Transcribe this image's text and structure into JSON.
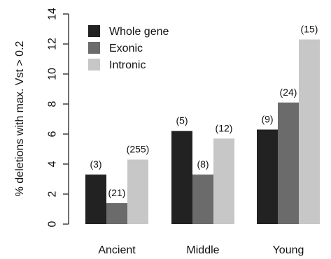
{
  "chart_data": {
    "type": "bar",
    "title": "",
    "xlabel": "",
    "ylabel": "% deletions with max. Vst > 0.2",
    "ylim": [
      0,
      14
    ],
    "yticks": [
      0,
      2,
      4,
      6,
      8,
      10,
      12,
      14
    ],
    "categories": [
      "Ancient",
      "Middle",
      "Young"
    ],
    "series": [
      {
        "name": "Whole gene",
        "color": "#222222",
        "values": [
          3.3,
          6.2,
          6.3
        ],
        "labels": [
          "(3)",
          "(5)",
          "(9)"
        ]
      },
      {
        "name": "Exonic",
        "color": "#6b6b6b",
        "values": [
          1.4,
          3.3,
          8.1
        ],
        "labels": [
          "(21)",
          "(8)",
          "(24)"
        ]
      },
      {
        "name": "Intronic",
        "color": "#c7c7c7",
        "values": [
          4.3,
          5.7,
          12.3
        ],
        "labels": [
          "(255)",
          "(12)",
          "(15)"
        ]
      }
    ],
    "grid": false,
    "legend_position": "top-left"
  }
}
